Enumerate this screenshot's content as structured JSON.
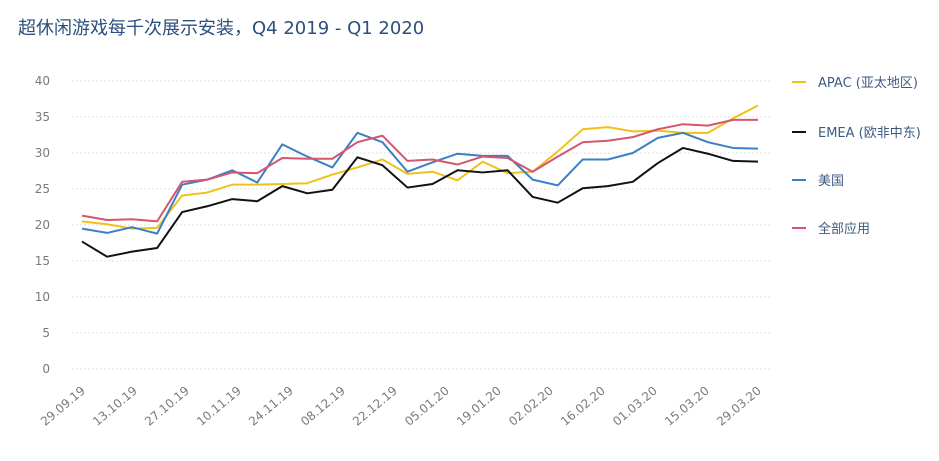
{
  "chart_data": {
    "type": "line",
    "title": "超休闲游戏每千次展示安装，Q4 2019 - Q1 2020",
    "xlabel": "",
    "ylabel": "",
    "ylim": [
      0,
      40
    ],
    "yticks": [
      0,
      5,
      10,
      15,
      20,
      25,
      30,
      35,
      40
    ],
    "xtick_labels": [
      "29.09.19",
      "13.10.19",
      "27.10.19",
      "10.11.19",
      "24.11.19",
      "08.12.19",
      "22.12.19",
      "05.01.20",
      "19.01.20",
      "02.02.20",
      "16.02.20",
      "01.03.20",
      "15.03.20",
      "29.03.20"
    ],
    "grid": true,
    "legend_placement": "right",
    "series": [
      {
        "name": "APAC (亚太地区)",
        "color": "#efc21a",
        "values": [
          20.5,
          20.1,
          19.5,
          19.6,
          24.1,
          24.5,
          25.6,
          25.6,
          25.7,
          25.8,
          27.0,
          28.0,
          29.1,
          27.1,
          27.4,
          26.2,
          28.8,
          27.2,
          27.4,
          30.2,
          33.3,
          33.6,
          33.0,
          33.1,
          32.8,
          32.8,
          34.8,
          36.6
        ]
      },
      {
        "name": "EMEA (欧非中东)",
        "color": "#111111",
        "values": [
          17.7,
          15.6,
          16.3,
          16.8,
          21.8,
          22.6,
          23.6,
          23.3,
          25.4,
          24.4,
          24.9,
          29.4,
          28.3,
          25.2,
          25.7,
          27.6,
          27.3,
          27.6,
          23.9,
          23.1,
          25.1,
          25.4,
          26.0,
          28.6,
          30.7,
          29.9,
          28.9,
          28.8
        ]
      },
      {
        "name": "美国",
        "color": "#3b80c3",
        "values": [
          19.5,
          18.9,
          19.7,
          18.8,
          25.6,
          26.3,
          27.6,
          25.9,
          31.2,
          29.5,
          28.0,
          32.8,
          31.5,
          27.4,
          28.7,
          29.9,
          29.6,
          29.6,
          26.3,
          25.5,
          29.1,
          29.1,
          30.0,
          32.1,
          32.8,
          31.5,
          30.7,
          30.6
        ]
      },
      {
        "name": "全部应用",
        "color": "#d4566f",
        "values": [
          21.3,
          20.7,
          20.8,
          20.5,
          26.0,
          26.3,
          27.3,
          27.2,
          29.3,
          29.2,
          29.2,
          31.5,
          32.4,
          28.9,
          29.1,
          28.4,
          29.5,
          29.3,
          27.4,
          29.5,
          31.5,
          31.7,
          32.2,
          33.3,
          34.0,
          33.8,
          34.6,
          34.6
        ]
      }
    ]
  }
}
